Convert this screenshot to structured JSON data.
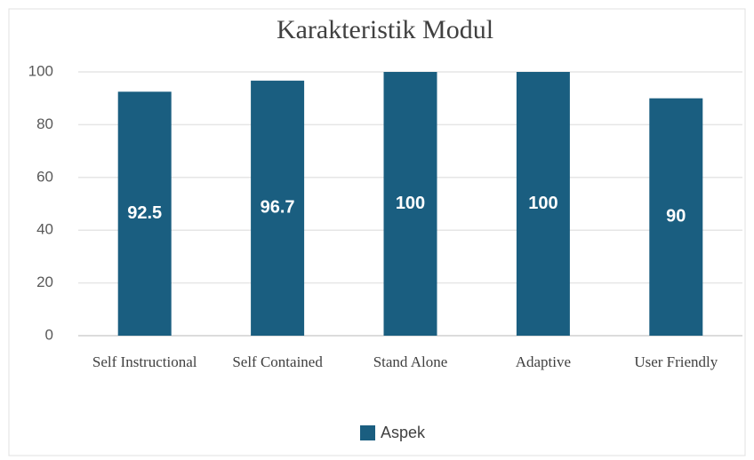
{
  "chart_data": {
    "type": "bar",
    "title": "Karakteristik Modul",
    "categories": [
      "Self Instructional",
      "Self Contained",
      "Stand Alone",
      "Adaptive",
      "User Friendly"
    ],
    "series": [
      {
        "name": "Aspek",
        "color": "#1a5e80",
        "values": [
          92.5,
          96.7,
          100,
          100,
          90
        ]
      }
    ],
    "ylim": [
      0,
      100
    ],
    "yticks": [
      0,
      20,
      40,
      60,
      80,
      100
    ],
    "grid": true,
    "legend": "bottom",
    "data_labels": true
  }
}
